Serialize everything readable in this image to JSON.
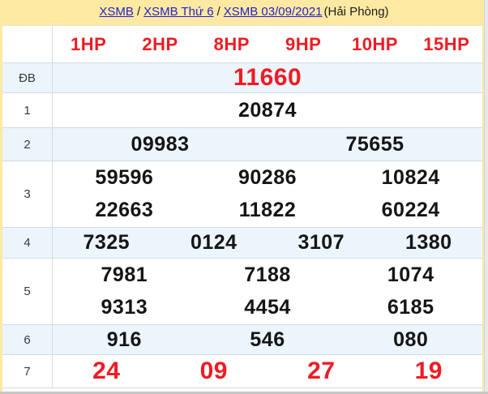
{
  "breadcrumb": {
    "links": [
      {
        "label": "XSMB"
      },
      {
        "label": "XSMB Thứ 6"
      },
      {
        "label": "XSMB 03/09/2021"
      }
    ],
    "separator": "/",
    "suffix": "(Hải Phòng)"
  },
  "table": {
    "column_headers": [
      "1HP",
      "2HP",
      "8HP",
      "9HP",
      "10HP",
      "15HP"
    ],
    "rows": [
      {
        "label": "ĐB",
        "lines": [
          [
            "11660"
          ]
        ]
      },
      {
        "label": "1",
        "lines": [
          [
            "20874"
          ]
        ]
      },
      {
        "label": "2",
        "lines": [
          [
            "09983",
            "75655"
          ]
        ]
      },
      {
        "label": "3",
        "lines": [
          [
            "59596",
            "90286",
            "10824"
          ],
          [
            "22663",
            "11822",
            "60224"
          ]
        ]
      },
      {
        "label": "4",
        "lines": [
          [
            "7325",
            "0124",
            "3107",
            "1380"
          ]
        ]
      },
      {
        "label": "5",
        "lines": [
          [
            "7981",
            "7188",
            "1074"
          ],
          [
            "9313",
            "4454",
            "6185"
          ]
        ]
      },
      {
        "label": "6",
        "lines": [
          [
            "916",
            "546",
            "080"
          ]
        ]
      },
      {
        "label": "7",
        "lines": [
          [
            "24",
            "09",
            "27",
            "19"
          ]
        ]
      }
    ]
  },
  "colors": {
    "accent_red": "#ed1c24",
    "band_yellow": "#fde9a2",
    "row_highlight_blue": "#ecf4fc",
    "link_blue": "#2222cc",
    "border_gray": "#d4dbe1"
  }
}
